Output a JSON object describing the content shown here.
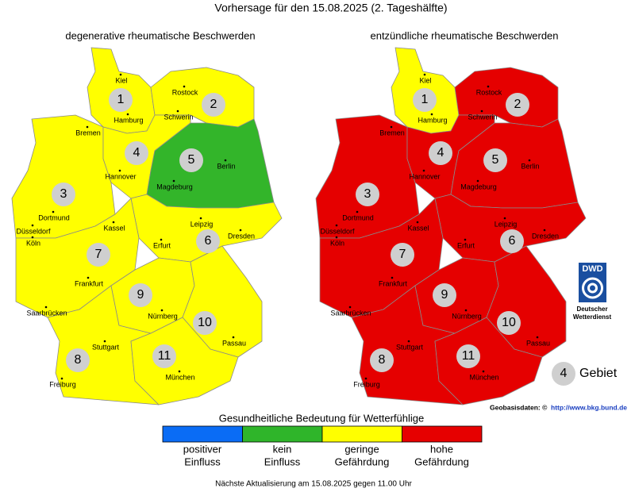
{
  "title": "Vorhersage für den 15.08.2025 (2. Tageshälfte)",
  "maps": [
    {
      "title": "degenerative rheumatische Beschwerden",
      "regions": [
        {
          "label": "1",
          "color": "#ffff00"
        },
        {
          "label": "2",
          "color": "#ffff00"
        },
        {
          "label": "3",
          "color": "#ffff00"
        },
        {
          "label": "4",
          "color": "#ffff00"
        },
        {
          "label": "5",
          "color": "#33b52a"
        },
        {
          "label": "6",
          "color": "#ffff00"
        },
        {
          "label": "7",
          "color": "#ffff00"
        },
        {
          "label": "8",
          "color": "#ffff00"
        },
        {
          "label": "9",
          "color": "#ffff00"
        },
        {
          "label": "10",
          "color": "#ffff00"
        },
        {
          "label": "11",
          "color": "#ffff00"
        }
      ]
    },
    {
      "title": "entzündliche rheumatische Beschwerden",
      "regions": [
        {
          "label": "1",
          "color": "#ffff00"
        },
        {
          "label": "2",
          "color": "#e50000"
        },
        {
          "label": "3",
          "color": "#e50000"
        },
        {
          "label": "4",
          "color": "#e50000"
        },
        {
          "label": "5",
          "color": "#e50000"
        },
        {
          "label": "6",
          "color": "#e50000"
        },
        {
          "label": "7",
          "color": "#e50000"
        },
        {
          "label": "8",
          "color": "#e50000"
        },
        {
          "label": "9",
          "color": "#e50000"
        },
        {
          "label": "10",
          "color": "#e50000"
        },
        {
          "label": "11",
          "color": "#e50000"
        }
      ]
    }
  ],
  "cities": [
    "Kiel",
    "Rostock",
    "Hamburg",
    "Schwerin",
    "Bremen",
    "Berlin",
    "Hannover",
    "Magdeburg",
    "Dortmund",
    "Düsseldorf",
    "Köln",
    "Kassel",
    "Leipzig",
    "Dresden",
    "Erfurt",
    "Frankfurt",
    "Saarbrücken",
    "Nürnberg",
    "Passau",
    "Stuttgart",
    "München",
    "Freiburg"
  ],
  "legend": {
    "title": "Gesundheitliche Bedeutung für Wetterfühlige",
    "items": [
      {
        "color": "#0a6cf5",
        "label": [
          "positiver",
          "Einfluss"
        ]
      },
      {
        "color": "#2fb52a",
        "label": [
          "kein",
          "Einfluss"
        ]
      },
      {
        "color": "#ffff00",
        "label": [
          "geringe",
          "Gefährdung"
        ]
      },
      {
        "color": "#e60000",
        "label": [
          "hohe",
          "Gefährdung"
        ]
      }
    ]
  },
  "key": {
    "symbol": "4",
    "label": "Gebiet"
  },
  "logo": {
    "abbr": "DWD",
    "lines": [
      "Deutscher",
      "Wetterdienst"
    ]
  },
  "source": {
    "text": "Geobasisdaten: ©",
    "link": "http://www.bkg.bund.de"
  },
  "footer": "Nächste Aktualisierung am 15.08.2025 gegen 11.00 Uhr"
}
